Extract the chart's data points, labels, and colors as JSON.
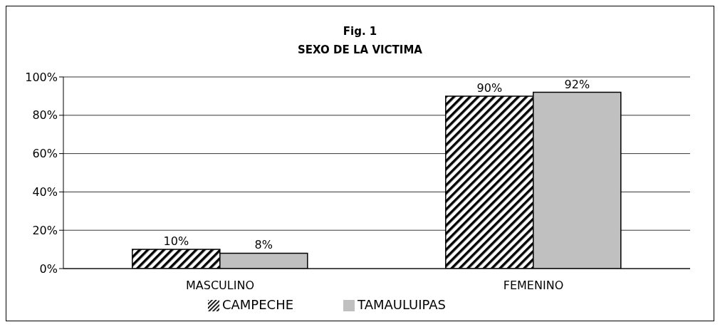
{
  "chart_data": {
    "type": "bar",
    "title": "Fig. 1",
    "subtitle": "SEXO DE LA VICTIMA",
    "categories": [
      "MASCULINO",
      "FEMENINO"
    ],
    "series": [
      {
        "name": "CAMPECHE",
        "color": "#000000",
        "values": [
          10,
          90
        ],
        "value_labels": [
          "10%",
          "90%"
        ]
      },
      {
        "name": "TAMAULUIPAS",
        "color": "#c0c0c0",
        "values": [
          8,
          92
        ],
        "value_labels": [
          "8%",
          "92%"
        ]
      }
    ],
    "ylim": [
      0,
      100
    ],
    "yticks": [
      {
        "value": 0,
        "label": "0%"
      },
      {
        "value": 20,
        "label": "20%"
      },
      {
        "value": 40,
        "label": "40%"
      },
      {
        "value": 60,
        "label": "60%"
      },
      {
        "value": 80,
        "label": "80%"
      },
      {
        "value": 100,
        "label": "100%"
      }
    ],
    "grid": "y",
    "legend": "bottom"
  }
}
